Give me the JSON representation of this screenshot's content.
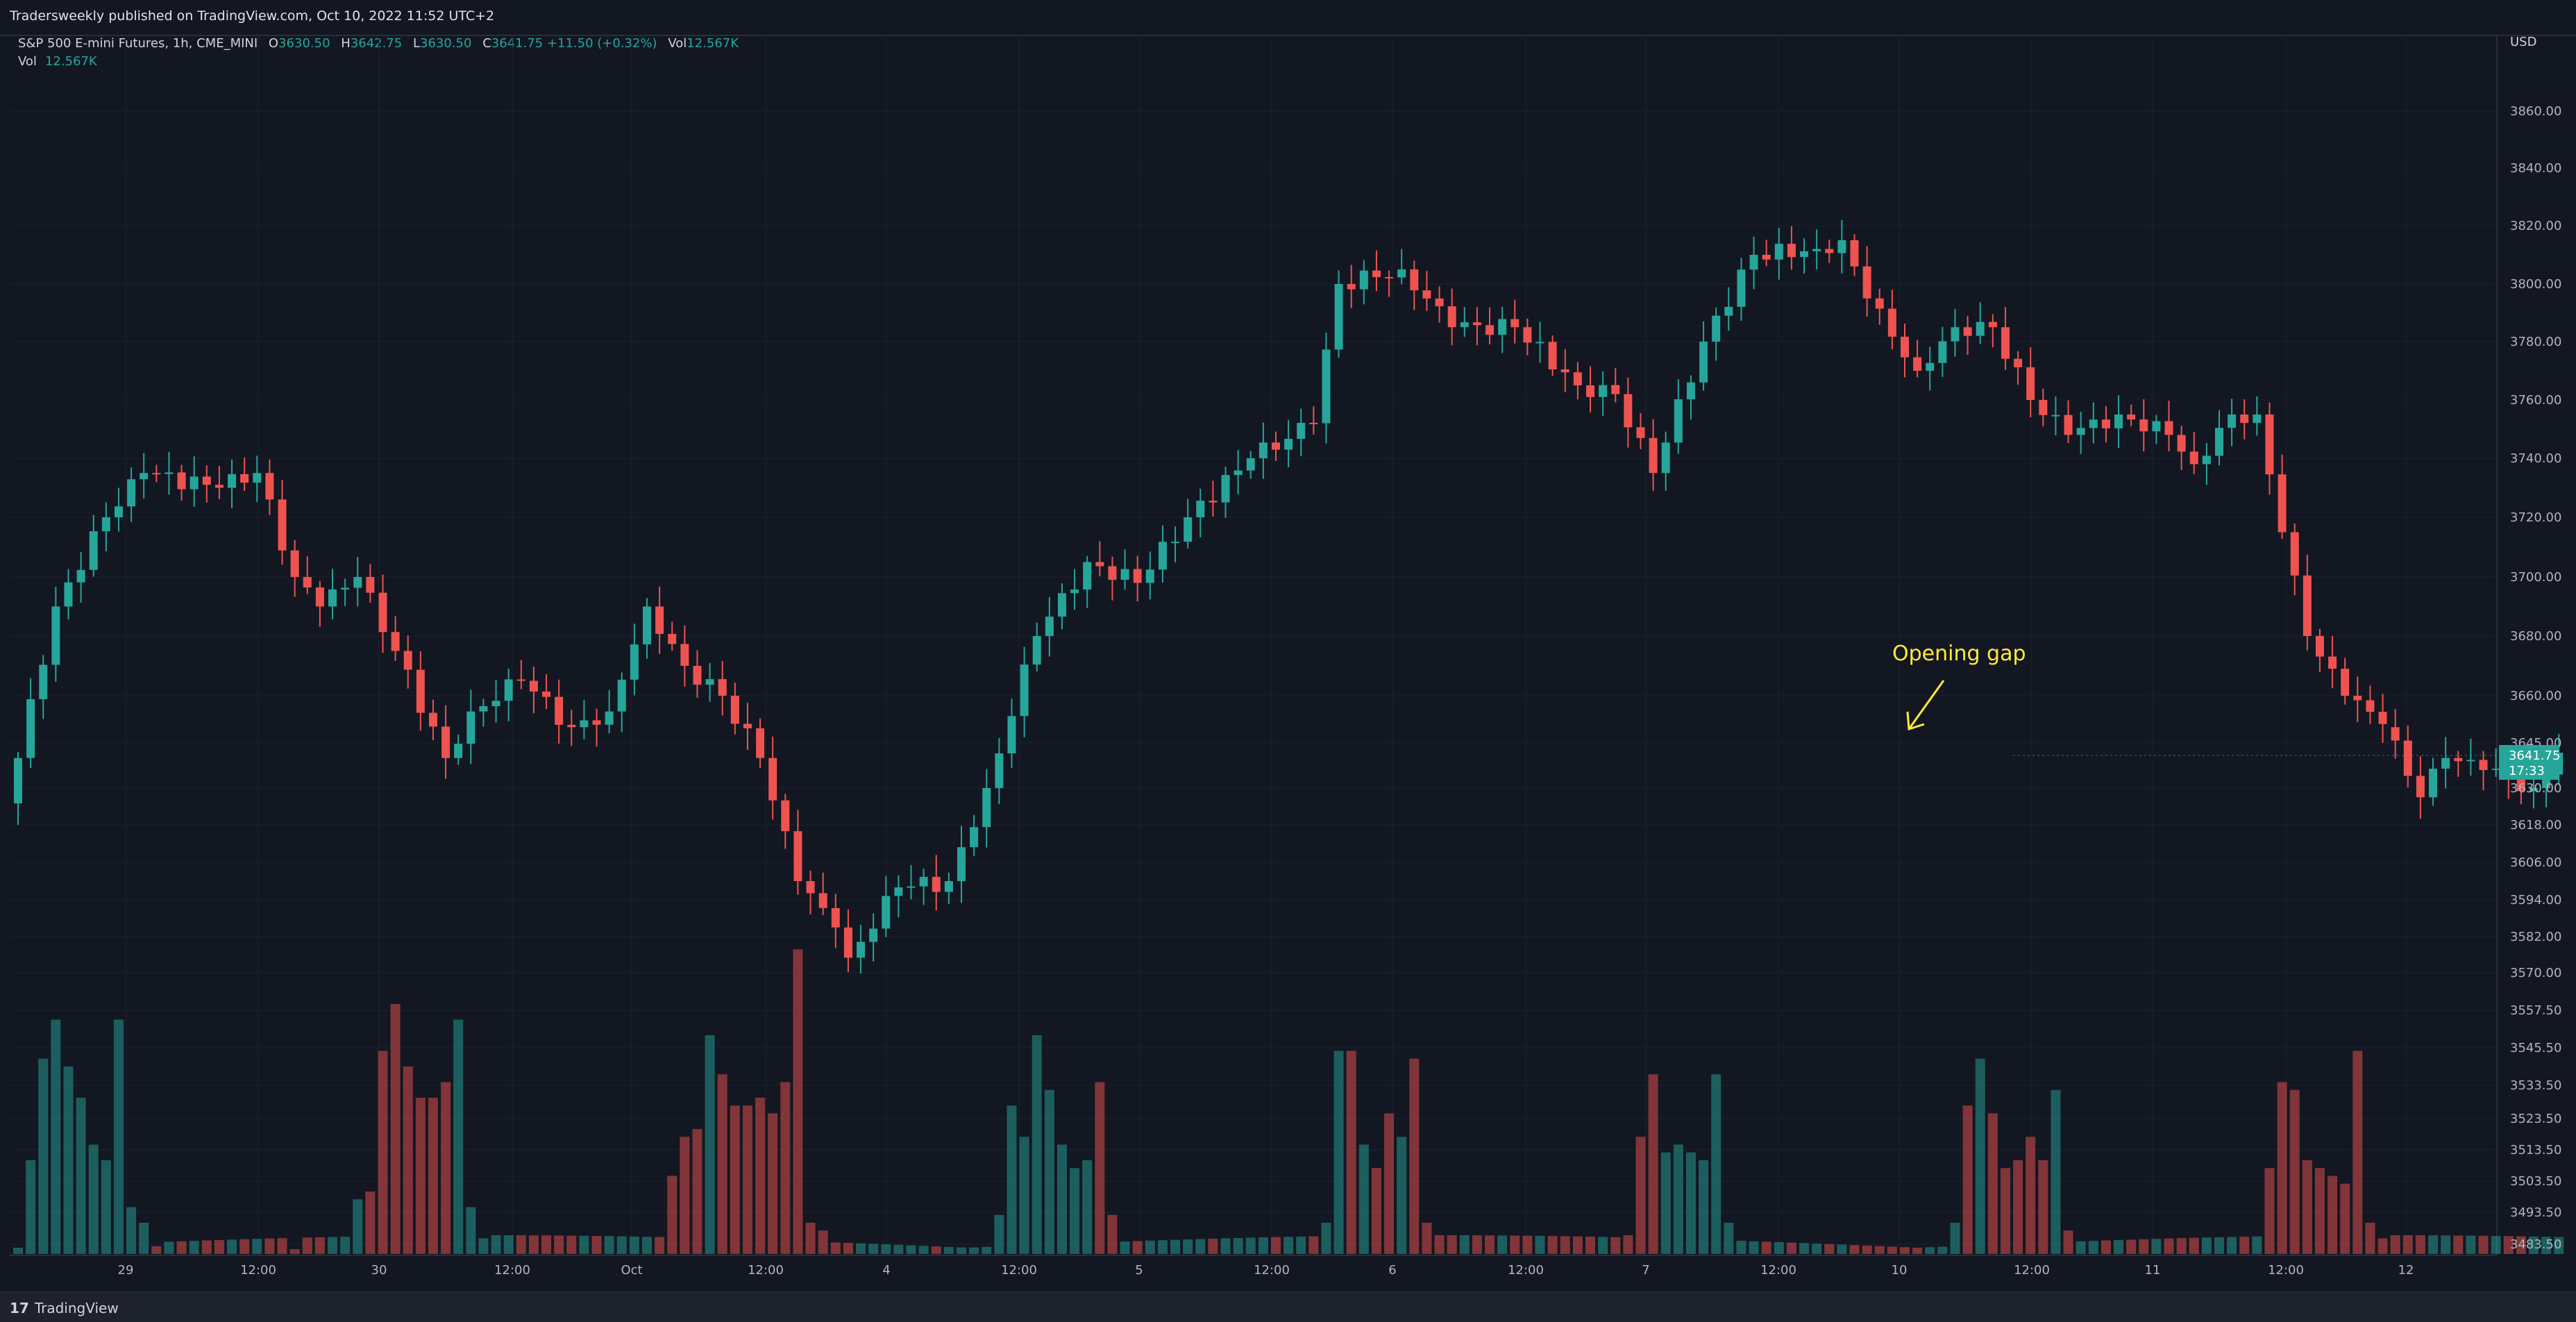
{
  "header": {
    "published": "Tradersweekly published on TradingView.com, Oct 10, 2022 11:52 UTC+2",
    "currency": "USD"
  },
  "legend": {
    "symbol": "S&P 500 E-mini Futures, 1h, CME_MINI",
    "open_label": "O",
    "open": "3630.50",
    "high_label": "H",
    "high": "3642.75",
    "low_label": "L",
    "low": "3630.50",
    "close_label": "C",
    "close": "3641.75",
    "change": "+11.50 (+0.32%)",
    "vol_label": "Vol",
    "vol": "12.567K"
  },
  "volume_legend": {
    "label": "Vol",
    "value": "12.567K"
  },
  "footer": {
    "brand": "TradingView"
  },
  "annotation": {
    "text": "Opening gap"
  },
  "last_price": {
    "price": "3641.75",
    "countdown": "17:33"
  },
  "colors": {
    "up": "#26a69a",
    "down": "#ef5350",
    "annotation": "#ffeb3b",
    "background": "#131722"
  },
  "chart_data": {
    "type": "candlestick",
    "title": "S&P 500 E-mini Futures, 1h, CME_MINI",
    "y_tick_labels": [
      "3860.00",
      "3840.00",
      "3820.00",
      "3800.00",
      "3780.00",
      "3760.00",
      "3740.00",
      "3720.00",
      "3700.00",
      "3680.00",
      "3660.00",
      "3645.00",
      "3630.00",
      "3618.00",
      "3606.00",
      "3594.00",
      "3582.00",
      "3570.00",
      "3557.50",
      "3545.50",
      "3533.50",
      "3523.50",
      "3513.50",
      "3503.50",
      "3493.50",
      "3483.50"
    ],
    "x_tick_labels": [
      "29",
      "12:00",
      "30",
      "12:00",
      "Oct",
      "12:00",
      "4",
      "12:00",
      "5",
      "12:00",
      "6",
      "12:00",
      "7",
      "12:00",
      "10",
      "12:00",
      "11",
      "12:00",
      "12"
    ],
    "grid": true,
    "anchors": [
      {
        "i": 0,
        "c": 3640
      },
      {
        "i": 3,
        "c": 3690
      },
      {
        "i": 7,
        "c": 3720
      },
      {
        "i": 10,
        "c": 3735
      },
      {
        "i": 16,
        "c": 3730
      },
      {
        "i": 19,
        "c": 3735
      },
      {
        "i": 22,
        "c": 3700
      },
      {
        "i": 24,
        "c": 3690
      },
      {
        "i": 27,
        "c": 3700
      },
      {
        "i": 30,
        "c": 3675
      },
      {
        "i": 34,
        "c": 3640
      },
      {
        "i": 36,
        "c": 3655
      },
      {
        "i": 40,
        "c": 3665
      },
      {
        "i": 44,
        "c": 3650
      },
      {
        "i": 47,
        "c": 3655
      },
      {
        "i": 50,
        "c": 3690
      },
      {
        "i": 53,
        "c": 3670
      },
      {
        "i": 56,
        "c": 3660
      },
      {
        "i": 59,
        "c": 3640
      },
      {
        "i": 62,
        "c": 3600
      },
      {
        "i": 65,
        "c": 3585
      },
      {
        "i": 66,
        "c": 3575
      },
      {
        "i": 70,
        "c": 3598
      },
      {
        "i": 74,
        "c": 3600
      },
      {
        "i": 77,
        "c": 3630
      },
      {
        "i": 81,
        "c": 3680
      },
      {
        "i": 85,
        "c": 3705
      },
      {
        "i": 89,
        "c": 3698
      },
      {
        "i": 93,
        "c": 3720
      },
      {
        "i": 98,
        "c": 3740
      },
      {
        "i": 103,
        "c": 3752
      },
      {
        "i": 105,
        "c": 3800
      },
      {
        "i": 110,
        "c": 3805
      },
      {
        "i": 114,
        "c": 3785
      },
      {
        "i": 119,
        "c": 3785
      },
      {
        "i": 124,
        "c": 3765
      },
      {
        "i": 127,
        "c": 3762
      },
      {
        "i": 130,
        "c": 3735
      },
      {
        "i": 134,
        "c": 3780
      },
      {
        "i": 138,
        "c": 3810
      },
      {
        "i": 143,
        "c": 3812
      },
      {
        "i": 145,
        "c": 3815
      },
      {
        "i": 147,
        "c": 3795
      },
      {
        "i": 151,
        "c": 3770
      },
      {
        "i": 154,
        "c": 3785
      },
      {
        "i": 157,
        "c": 3785
      },
      {
        "i": 160,
        "c": 3760
      },
      {
        "i": 163,
        "c": 3748
      },
      {
        "i": 167,
        "c": 3755
      },
      {
        "i": 171,
        "c": 3748
      },
      {
        "i": 173,
        "c": 3738
      },
      {
        "i": 176,
        "c": 3755
      },
      {
        "i": 178,
        "c": 3755
      },
      {
        "i": 180,
        "c": 3715
      },
      {
        "i": 182,
        "c": 3680
      },
      {
        "i": 185,
        "c": 3660
      },
      {
        "i": 188,
        "c": 3651
      },
      {
        "i": 191,
        "c": 3627
      },
      {
        "i": 193,
        "c": 3640
      },
      {
        "i": 196,
        "c": 3636
      },
      {
        "i": 200,
        "c": 3630
      },
      {
        "i": 202,
        "c": 3641.75
      }
    ],
    "volume": [
      {
        "i": 1,
        "v": 60
      },
      {
        "i": 2,
        "v": 125
      },
      {
        "i": 3,
        "v": 150
      },
      {
        "i": 4,
        "v": 120
      },
      {
        "i": 5,
        "v": 100
      },
      {
        "i": 6,
        "v": 70
      },
      {
        "i": 7,
        "v": 60
      },
      {
        "i": 8,
        "v": 150
      },
      {
        "i": 9,
        "v": 30
      },
      {
        "i": 10,
        "v": 20
      },
      {
        "i": 11,
        "v": 5
      },
      {
        "i": 22,
        "v": 3
      },
      {
        "i": 27,
        "v": 35
      },
      {
        "i": 28,
        "v": 40
      },
      {
        "i": 29,
        "v": 130
      },
      {
        "i": 30,
        "v": 160
      },
      {
        "i": 31,
        "v": 120
      },
      {
        "i": 32,
        "v": 100
      },
      {
        "i": 33,
        "v": 100
      },
      {
        "i": 34,
        "v": 110
      },
      {
        "i": 35,
        "v": 150
      },
      {
        "i": 36,
        "v": 30
      },
      {
        "i": 37,
        "v": 10
      },
      {
        "i": 52,
        "v": 50
      },
      {
        "i": 53,
        "v": 75
      },
      {
        "i": 54,
        "v": 80
      },
      {
        "i": 55,
        "v": 140
      },
      {
        "i": 56,
        "v": 115
      },
      {
        "i": 57,
        "v": 95
      },
      {
        "i": 58,
        "v": 95
      },
      {
        "i": 59,
        "v": 100
      },
      {
        "i": 60,
        "v": 90
      },
      {
        "i": 61,
        "v": 110
      },
      {
        "i": 62,
        "v": 195
      },
      {
        "i": 63,
        "v": 20
      },
      {
        "i": 64,
        "v": 15
      },
      {
        "i": 78,
        "v": 25
      },
      {
        "i": 79,
        "v": 95
      },
      {
        "i": 80,
        "v": 75
      },
      {
        "i": 81,
        "v": 140
      },
      {
        "i": 82,
        "v": 105
      },
      {
        "i": 83,
        "v": 70
      },
      {
        "i": 84,
        "v": 55
      },
      {
        "i": 85,
        "v": 60
      },
      {
        "i": 86,
        "v": 110
      },
      {
        "i": 87,
        "v": 25
      },
      {
        "i": 104,
        "v": 20
      },
      {
        "i": 105,
        "v": 130
      },
      {
        "i": 106,
        "v": 130
      },
      {
        "i": 107,
        "v": 70
      },
      {
        "i": 108,
        "v": 55
      },
      {
        "i": 109,
        "v": 90
      },
      {
        "i": 110,
        "v": 75
      },
      {
        "i": 111,
        "v": 125
      },
      {
        "i": 112,
        "v": 20
      },
      {
        "i": 128,
        "v": 12
      },
      {
        "i": 129,
        "v": 75
      },
      {
        "i": 130,
        "v": 115
      },
      {
        "i": 131,
        "v": 65
      },
      {
        "i": 132,
        "v": 70
      },
      {
        "i": 133,
        "v": 65
      },
      {
        "i": 134,
        "v": 60
      },
      {
        "i": 135,
        "v": 115
      },
      {
        "i": 136,
        "v": 20
      },
      {
        "i": 154,
        "v": 20
      },
      {
        "i": 155,
        "v": 95
      },
      {
        "i": 156,
        "v": 125
      },
      {
        "i": 157,
        "v": 90
      },
      {
        "i": 158,
        "v": 55
      },
      {
        "i": 159,
        "v": 60
      },
      {
        "i": 160,
        "v": 75
      },
      {
        "i": 161,
        "v": 60
      },
      {
        "i": 162,
        "v": 105
      },
      {
        "i": 163,
        "v": 15
      },
      {
        "i": 179,
        "v": 55
      },
      {
        "i": 180,
        "v": 110
      },
      {
        "i": 181,
        "v": 105
      },
      {
        "i": 182,
        "v": 60
      },
      {
        "i": 183,
        "v": 55
      },
      {
        "i": 184,
        "v": 50
      },
      {
        "i": 185,
        "v": 45
      },
      {
        "i": 186,
        "v": 130
      },
      {
        "i": 187,
        "v": 20
      },
      {
        "i": 188,
        "v": 10
      }
    ]
  }
}
